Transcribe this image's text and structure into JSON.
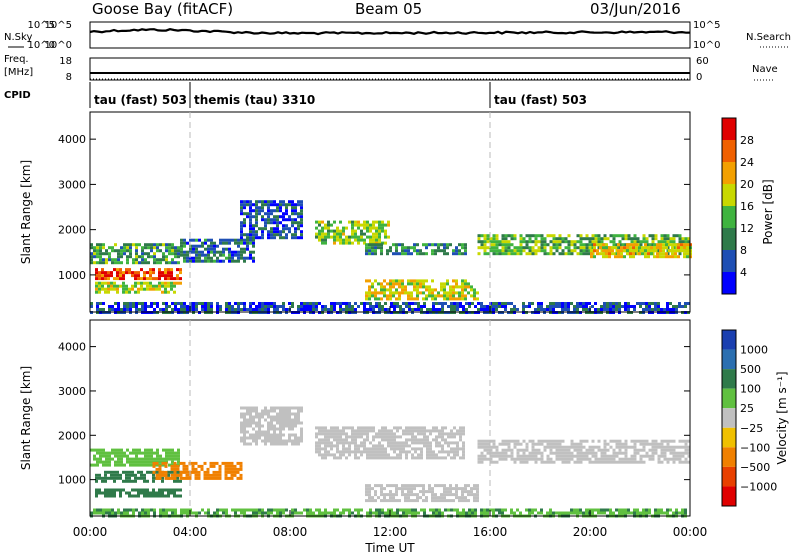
{
  "header": {
    "station": "Goose Bay (fitACF)",
    "beam": "Beam 05",
    "date": "03/Jun/2016"
  },
  "left_labels": {
    "nsky": "N.Sky",
    "freq": "Freq.",
    "freq_unit": "[MHz]",
    "cpid": "CPID"
  },
  "right_labels": {
    "nsearch": "N.Search",
    "nave": "Nave"
  },
  "noise_axis": {
    "top": "10^5",
    "bottom": "10^0"
  },
  "freq_axis": {
    "left_top": "18",
    "left_bottom": "8",
    "right_top": "60",
    "right_bottom": "0"
  },
  "cpid_segments": [
    {
      "label": "tau (fast) 503",
      "start_hour": 0
    },
    {
      "label": "themis (tau) 3310",
      "start_hour": 4
    },
    {
      "label": "tau (fast) 503",
      "start_hour": 16
    }
  ],
  "x_axis": {
    "title": "Time UT",
    "ticks": [
      "00:00",
      "04:00",
      "08:00",
      "12:00",
      "16:00",
      "20:00",
      "00:00"
    ]
  },
  "power_colorbar": {
    "title": "Power [dB]",
    "ticks": [
      "4",
      "8",
      "12",
      "16",
      "20",
      "24",
      "28"
    ],
    "colors": [
      "#0000ff",
      "#1e4fb4",
      "#2f7a4a",
      "#3fb33f",
      "#c8d800",
      "#f3a000",
      "#f06000",
      "#e00000"
    ]
  },
  "velocity_colorbar": {
    "title": "Velocity [m s⁻¹]",
    "ticks": [
      "1000",
      "500",
      "100",
      "25",
      "−25",
      "−100",
      "−500",
      "−1000"
    ],
    "colors": [
      "#1a3fb0",
      "#2b6fb0",
      "#2f7a4a",
      "#60c040",
      "#c0c0c0",
      "#f0c000",
      "#f08000",
      "#e84000",
      "#e00000"
    ]
  },
  "chart_data": [
    {
      "type": "heatmap",
      "panel": "power",
      "ylabel": "Slant Range [km]",
      "xlabel": "Time UT",
      "xlim_hours": [
        0,
        24
      ],
      "ylim": [
        180,
        4600
      ],
      "y_ticks": [
        1000,
        2000,
        3000,
        4000
      ],
      "echo_bands": [
        {
          "t0": 0.0,
          "t1": 3.6,
          "r0": 1300,
          "r1": 1700,
          "value_db": 12
        },
        {
          "t0": 0.2,
          "t1": 3.6,
          "r0": 950,
          "r1": 1150,
          "value_db": 26
        },
        {
          "t0": 0.2,
          "t1": 3.6,
          "r0": 600,
          "r1": 850,
          "value_db": 18
        },
        {
          "t0": 3.6,
          "t1": 6.5,
          "r0": 1300,
          "r1": 1800,
          "value_db": 8
        },
        {
          "t0": 6.0,
          "t1": 8.5,
          "r0": 1800,
          "r1": 2650,
          "value_db": 6
        },
        {
          "t0": 9.0,
          "t1": 12.0,
          "r0": 1700,
          "r1": 2200,
          "value_db": 16
        },
        {
          "t0": 11.0,
          "t1": 15.0,
          "r0": 1500,
          "r1": 1700,
          "value_db": 10
        },
        {
          "t0": 11.0,
          "t1": 15.5,
          "r0": 500,
          "r1": 900,
          "value_db": 18
        },
        {
          "t0": 15.5,
          "t1": 24.0,
          "r0": 1500,
          "r1": 1900,
          "value_db": 14
        },
        {
          "t0": 20.0,
          "t1": 24.0,
          "r0": 1400,
          "r1": 1700,
          "value_db": 20
        },
        {
          "t0": 0.0,
          "t1": 24.0,
          "r0": 200,
          "r1": 400,
          "value_db": 6
        }
      ]
    },
    {
      "type": "heatmap",
      "panel": "velocity",
      "ylabel": "Slant Range [km]",
      "xlabel": "Time UT",
      "xlim_hours": [
        0,
        24
      ],
      "ylim": [
        180,
        4600
      ],
      "y_ticks": [
        1000,
        2000,
        3000,
        4000
      ],
      "echo_bands": [
        {
          "t0": 0.0,
          "t1": 3.6,
          "r0": 1300,
          "r1": 1700,
          "value_ms": 50
        },
        {
          "t0": 0.2,
          "t1": 3.6,
          "r0": 950,
          "r1": 1200,
          "value_ms": 200
        },
        {
          "t0": 2.5,
          "t1": 6.0,
          "r0": 1000,
          "r1": 1400,
          "value_ms": -200
        },
        {
          "t0": 0.2,
          "t1": 3.6,
          "r0": 600,
          "r1": 800,
          "value_ms": 80
        },
        {
          "t0": 6.0,
          "t1": 8.5,
          "r0": 1800,
          "r1": 2650,
          "value_ms": 0
        },
        {
          "t0": 9.0,
          "t1": 15.0,
          "r0": 1500,
          "r1": 2200,
          "value_ms": 0
        },
        {
          "t0": 11.0,
          "t1": 15.5,
          "r0": 500,
          "r1": 900,
          "value_ms": 0
        },
        {
          "t0": 15.5,
          "t1": 24.0,
          "r0": 1400,
          "r1": 1900,
          "value_ms": 0
        },
        {
          "t0": 0.0,
          "t1": 24.0,
          "r0": 200,
          "r1": 350,
          "value_ms": 60
        }
      ]
    }
  ]
}
